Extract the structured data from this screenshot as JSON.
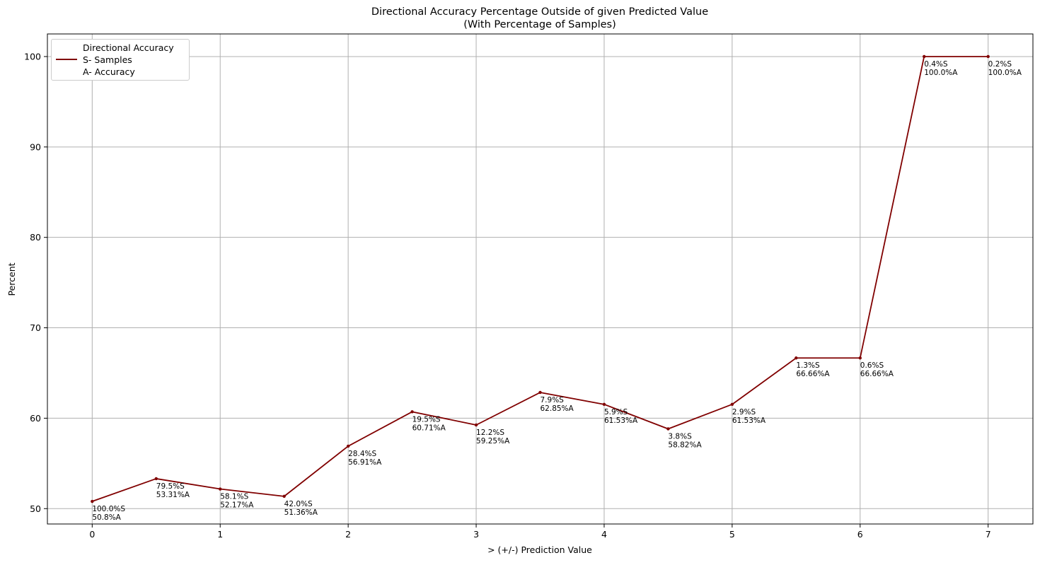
{
  "chart_data": {
    "type": "line",
    "title": "Directional Accuracy Percentage Outside of given Predicted Value",
    "subtitle": "(With Percentage of Samples)",
    "xlabel": "> (+/-) Prediction Value",
    "ylabel": "Percent",
    "xlim": [
      -0.35,
      7.35
    ],
    "ylim": [
      48.3,
      102.5
    ],
    "xticks": [
      "0",
      "1",
      "2",
      "3",
      "4",
      "5",
      "6",
      "7"
    ],
    "yticks": [
      "50",
      "60",
      "70",
      "80",
      "90",
      "100"
    ],
    "grid": true,
    "legend_position": "top-left",
    "color": "#800000",
    "series": [
      {
        "name": "Directional Accuracy",
        "x": [
          0,
          0.5,
          1,
          1.5,
          2,
          2.5,
          3,
          3.5,
          4,
          4.5,
          5,
          5.5,
          6,
          6.5,
          7
        ],
        "y": [
          50.8,
          53.31,
          52.17,
          51.36,
          56.91,
          60.71,
          59.25,
          62.85,
          61.53,
          58.82,
          61.53,
          66.66,
          66.66,
          100.0,
          100.0
        ]
      }
    ],
    "annotations": [
      {
        "s": "100.0%S",
        "a": "50.8%A"
      },
      {
        "s": "79.5%S",
        "a": "53.31%A"
      },
      {
        "s": "58.1%S",
        "a": "52.17%A"
      },
      {
        "s": "42.0%S",
        "a": "51.36%A"
      },
      {
        "s": "28.4%S",
        "a": "56.91%A"
      },
      {
        "s": "19.5%S",
        "a": "60.71%A"
      },
      {
        "s": "12.2%S",
        "a": "59.25%A"
      },
      {
        "s": "7.9%S",
        "a": "62.85%A"
      },
      {
        "s": "5.9%S",
        "a": "61.53%A"
      },
      {
        "s": "3.8%S",
        "a": "58.82%A"
      },
      {
        "s": "2.9%S",
        "a": "61.53%A"
      },
      {
        "s": "1.3%S",
        "a": "66.66%A"
      },
      {
        "s": "0.6%S",
        "a": "66.66%A"
      },
      {
        "s": "0.4%S",
        "a": "100.0%A"
      },
      {
        "s": "0.2%S",
        "a": "100.0%A"
      }
    ],
    "legend_lines": [
      "Directional Accuracy",
      "S- Samples",
      "A- Accuracy"
    ]
  }
}
